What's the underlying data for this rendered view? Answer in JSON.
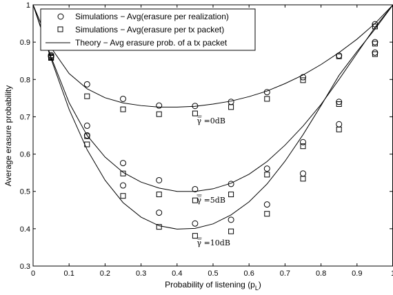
{
  "chart_data": {
    "type": "line",
    "xlabel": "Probability of listening (p",
    "xlabel_sub": "L",
    "xlabel_end": ")",
    "ylabel": "Average erasure probability",
    "xlim": [
      0,
      1
    ],
    "ylim": [
      0.3,
      1
    ],
    "xticks": [
      "0",
      "0.1",
      "0.2",
      "0.3",
      "0.4",
      "0.5",
      "0.6",
      "0.7",
      "0.8",
      "0.9",
      "1"
    ],
    "yticks": [
      "0.3",
      "0.4",
      "0.5",
      "0.6",
      "0.7",
      "0.8",
      "0.9",
      "1"
    ],
    "grid": false,
    "legend_position": "top-left",
    "legend": [
      {
        "marker": "circle",
        "label": "Simulations − Avg(erasure per realization)"
      },
      {
        "marker": "square",
        "label": "Simulations − Avg(erasure per tx packet)"
      },
      {
        "marker": "line",
        "label": "Theory − Avg erasure prob. of a tx packet"
      }
    ],
    "x": [
      0.05,
      0.15,
      0.25,
      0.35,
      0.45,
      0.55,
      0.65,
      0.75,
      0.85,
      0.95
    ],
    "groups": [
      {
        "annotation": "γ̅ =0dB",
        "annotation_x": 0.455,
        "annotation_y": 0.682,
        "circles": [
          0.865,
          0.787,
          0.748,
          0.73,
          0.729,
          0.74,
          0.766,
          0.806,
          0.864,
          0.948
        ],
        "squares": [
          0.86,
          0.755,
          0.72,
          0.707,
          0.709,
          0.726,
          0.748,
          0.798,
          0.862,
          0.942
        ],
        "theory_x": [
          0,
          0.05,
          0.1,
          0.15,
          0.2,
          0.25,
          0.3,
          0.35,
          0.4,
          0.45,
          0.5,
          0.55,
          0.6,
          0.65,
          0.7,
          0.75,
          0.8,
          0.85,
          0.9,
          0.95,
          1
        ],
        "theory_y": [
          1.0,
          0.885,
          0.816,
          0.775,
          0.751,
          0.737,
          0.73,
          0.726,
          0.726,
          0.728,
          0.734,
          0.742,
          0.754,
          0.769,
          0.789,
          0.812,
          0.84,
          0.872,
          0.908,
          0.95,
          1.0
        ]
      },
      {
        "annotation": "γ̅ =5dB",
        "annotation_x": 0.455,
        "annotation_y": 0.47,
        "circles": [
          0.862,
          0.676,
          0.576,
          0.53,
          0.506,
          0.52,
          0.561,
          0.632,
          0.74,
          0.9
        ],
        "squares": [
          0.858,
          0.648,
          0.548,
          0.492,
          0.476,
          0.492,
          0.545,
          0.621,
          0.734,
          0.896
        ],
        "theory_x": [
          0,
          0.05,
          0.1,
          0.15,
          0.2,
          0.25,
          0.3,
          0.35,
          0.4,
          0.45,
          0.5,
          0.55,
          0.6,
          0.65,
          0.7,
          0.75,
          0.8,
          0.85,
          0.9,
          0.95,
          1
        ],
        "theory_y": [
          1.0,
          0.86,
          0.738,
          0.65,
          0.592,
          0.551,
          0.525,
          0.509,
          0.5,
          0.5,
          0.507,
          0.522,
          0.546,
          0.58,
          0.624,
          0.675,
          0.733,
          0.8,
          0.87,
          0.94,
          1.0
        ]
      },
      {
        "annotation": "γ̅ =10dB",
        "annotation_x": 0.455,
        "annotation_y": 0.355,
        "circles": [
          0.862,
          0.65,
          0.516,
          0.443,
          0.414,
          0.424,
          0.465,
          0.548,
          0.68,
          0.872
        ],
        "squares": [
          0.858,
          0.626,
          0.488,
          0.405,
          0.381,
          0.393,
          0.44,
          0.534,
          0.666,
          0.868
        ],
        "theory_x": [
          0,
          0.05,
          0.1,
          0.15,
          0.2,
          0.25,
          0.3,
          0.35,
          0.4,
          0.45,
          0.5,
          0.55,
          0.6,
          0.65,
          0.7,
          0.75,
          0.8,
          0.85,
          0.9,
          0.95,
          1
        ],
        "theory_y": [
          1.0,
          0.855,
          0.72,
          0.612,
          0.53,
          0.47,
          0.431,
          0.408,
          0.399,
          0.401,
          0.413,
          0.437,
          0.472,
          0.52,
          0.581,
          0.652,
          0.73,
          0.811,
          0.875,
          0.935,
          1.0
        ]
      }
    ]
  }
}
